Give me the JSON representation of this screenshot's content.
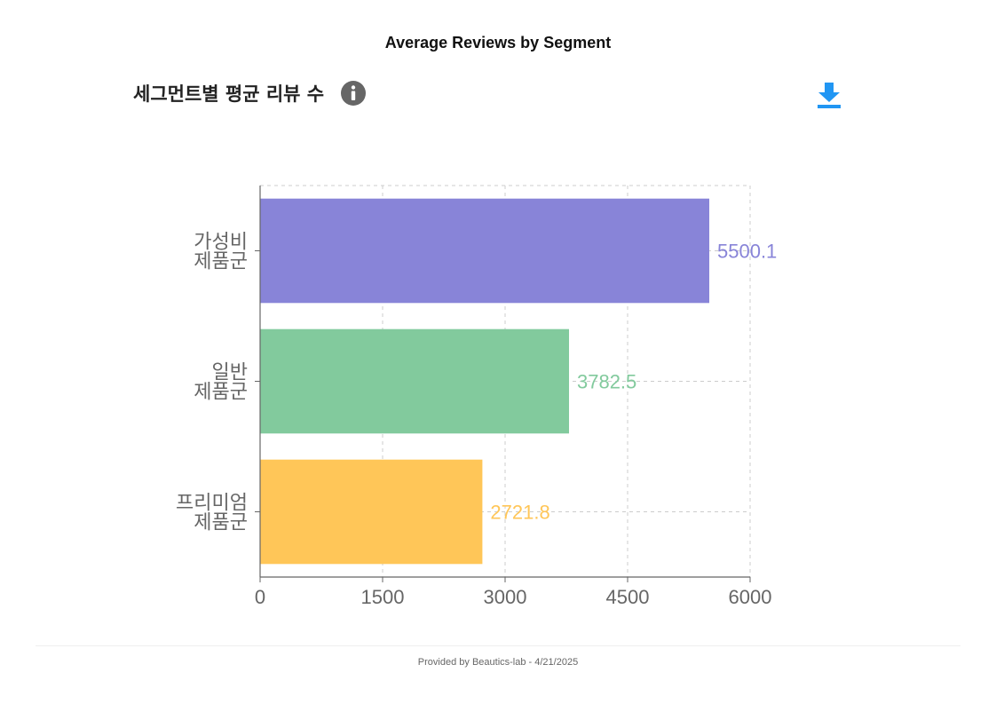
{
  "page": {
    "title": "Average Reviews by Segment",
    "footer": "Provided by Beautics-lab - 4/21/2025"
  },
  "chart_header": {
    "title": "세그먼트별 평균 리뷰 수",
    "info_icon": "info-icon",
    "download_icon": "download-icon",
    "download_color": "#2196F3"
  },
  "chart_data": {
    "type": "bar",
    "orientation": "horizontal",
    "categories": [
      [
        "가성비",
        "제품군"
      ],
      [
        "일반",
        "제품군"
      ],
      [
        "프리미엄",
        "제품군"
      ]
    ],
    "values": [
      5500.1,
      3782.5,
      2721.8
    ],
    "value_labels": [
      "5500.1",
      "3782.5",
      "2721.8"
    ],
    "colors": [
      "#8884d8",
      "#82ca9d",
      "#ffc658"
    ],
    "xlim": [
      0,
      6000
    ],
    "xticks": [
      "0",
      "1500",
      "3000",
      "4500",
      "6000"
    ],
    "grid": true,
    "grid_style": "dashed",
    "title": "",
    "xlabel": "",
    "ylabel": ""
  }
}
